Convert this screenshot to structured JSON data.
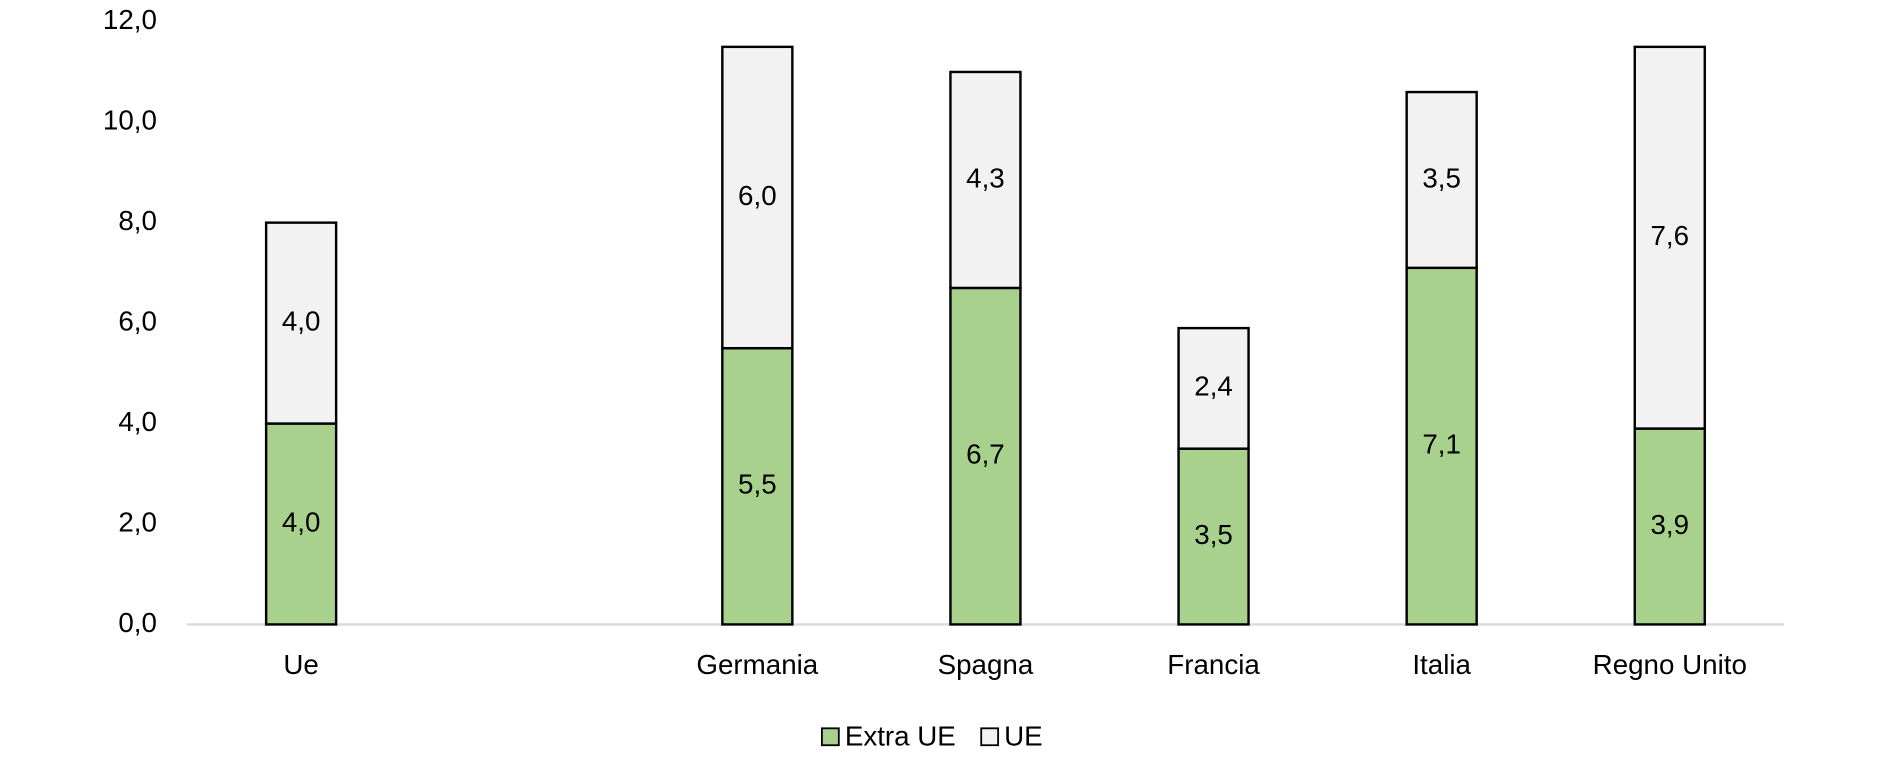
{
  "chart_data": {
    "type": "stacked_bar",
    "categories": [
      "Ue",
      null,
      "Germania",
      "Spagna",
      "Francia",
      "Italia",
      "Regno Unito"
    ],
    "series": [
      {
        "name": "Extra UE",
        "color": "#a9d18e",
        "values": [
          4.0,
          null,
          5.5,
          6.7,
          3.5,
          7.1,
          3.9
        ],
        "value_labels": [
          "4,0",
          null,
          "5,5",
          "6,7",
          "3,5",
          "7,1",
          "3,9"
        ]
      },
      {
        "name": "UE",
        "color": "#f2f2f2",
        "values": [
          4.0,
          null,
          6.0,
          4.3,
          2.4,
          3.5,
          7.6
        ],
        "value_labels": [
          "4,0",
          null,
          "6,0",
          "4,3",
          "2,4",
          "3,5",
          "7,6"
        ]
      }
    ],
    "ylim": [
      0,
      12
    ],
    "yticks": [
      {
        "value": 0,
        "label": "0,0"
      },
      {
        "value": 2,
        "label": "2,0"
      },
      {
        "value": 4,
        "label": "4,0"
      },
      {
        "value": 6,
        "label": "6,0"
      },
      {
        "value": 8,
        "label": "8,0"
      },
      {
        "value": 10,
        "label": "10,0"
      },
      {
        "value": 12,
        "label": "12,0"
      }
    ],
    "legend": "bottom"
  }
}
